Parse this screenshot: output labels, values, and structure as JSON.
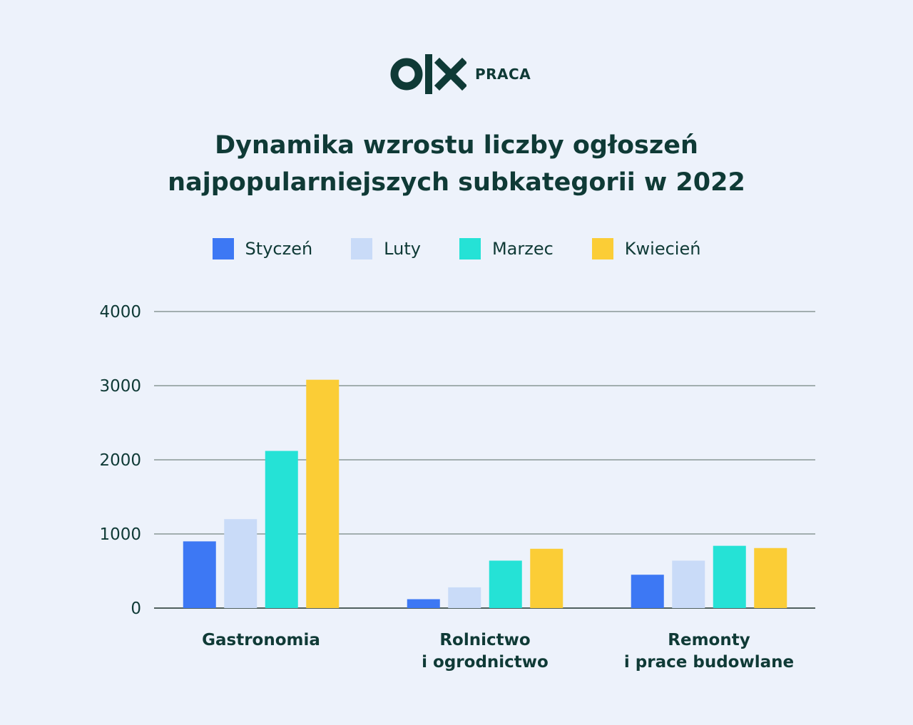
{
  "brand": {
    "logo_text": "OLX",
    "sub_label": "PRACA",
    "color": "#0f3a36"
  },
  "chart_data": {
    "type": "bar",
    "title_lines": [
      "Dynamika wzrostu liczby ogłoszeń",
      "najpopularniejszych subkategorii w 2022"
    ],
    "categories": [
      [
        "Gastronomia"
      ],
      [
        "Rolnictwo",
        "i ogrodnictwo"
      ],
      [
        "Remonty",
        "i prace budowlane"
      ]
    ],
    "series": [
      {
        "name": "Styczeń",
        "color": "#3d78f4",
        "values": [
          900,
          120,
          450
        ]
      },
      {
        "name": "Luty",
        "color": "#c9dbf8",
        "values": [
          1200,
          280,
          640
        ]
      },
      {
        "name": "Marzec",
        "color": "#25e2d6",
        "values": [
          2120,
          640,
          840
        ]
      },
      {
        "name": "Kwiecień",
        "color": "#fbcd36",
        "values": [
          3080,
          800,
          810
        ]
      }
    ],
    "yticks": [
      0,
      1000,
      2000,
      3000,
      4000
    ],
    "ylim": [
      0,
      4000
    ],
    "grid": true,
    "legend_position": "top-center",
    "xlabel": "",
    "ylabel": ""
  }
}
